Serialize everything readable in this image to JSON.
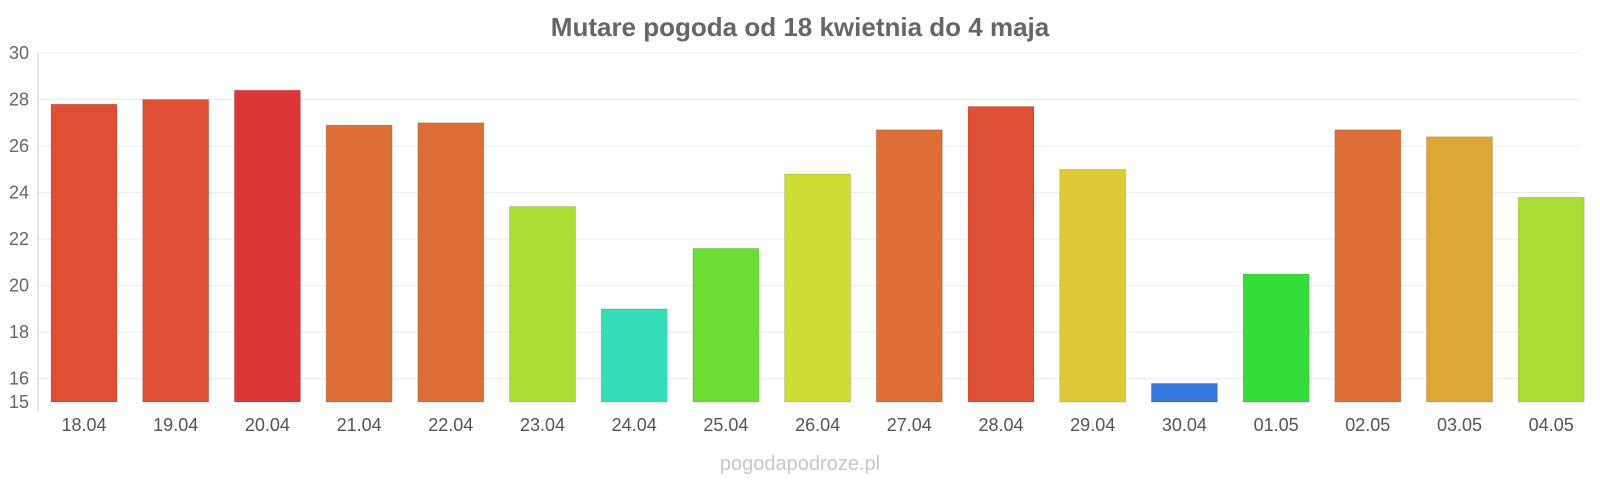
{
  "chart_data": {
    "type": "bar",
    "title": "Mutare pogoda od 18 kwietnia do 4 maja",
    "xlabel": "",
    "ylabel": "",
    "categories": [
      "18.04",
      "19.04",
      "20.04",
      "21.04",
      "22.04",
      "23.04",
      "24.04",
      "25.04",
      "26.04",
      "27.04",
      "28.04",
      "29.04",
      "30.04",
      "01.05",
      "02.05",
      "03.05",
      "04.05"
    ],
    "values": [
      27.8,
      28.0,
      28.4,
      26.9,
      27.0,
      23.4,
      19.0,
      21.6,
      24.8,
      26.7,
      27.7,
      25.0,
      15.8,
      20.5,
      26.7,
      26.4,
      23.8
    ],
    "colors": [
      "#dd5035",
      "#dd5035",
      "#dc3535",
      "#dd6e35",
      "#dd6e35",
      "#acdd35",
      "#35ddb8",
      "#6cdd35",
      "#cddd35",
      "#dd6e35",
      "#dd5035",
      "#ddc935",
      "#3577dd",
      "#35dd3a",
      "#dd6e35",
      "#dda635",
      "#acdd35"
    ],
    "ylim": [
      15,
      30
    ],
    "yticks": [
      15,
      16,
      18,
      20,
      22,
      24,
      26,
      28,
      30
    ],
    "grid": true
  },
  "credit": "pogodapodroze.pl"
}
